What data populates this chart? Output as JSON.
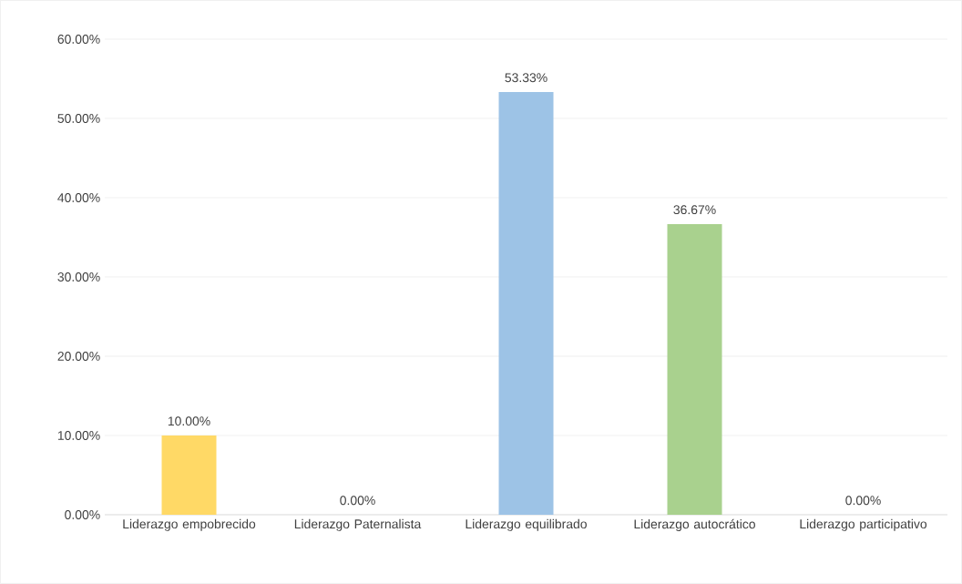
{
  "chart_data": {
    "type": "bar",
    "categories": [
      "Liderazgo empobrecido",
      "Liderazgo Paternalista",
      "Liderazgo equilibrado",
      "Liderazgo autocrático",
      "Liderazgo participativo"
    ],
    "values": [
      10,
      0,
      53.33,
      36.67,
      0
    ],
    "value_labels": [
      "10.00%",
      "0.00%",
      "53.33%",
      "36.67%",
      "0.00%"
    ],
    "colors": [
      "#ffd966",
      "#f4b183",
      "#9dc3e6",
      "#a9d18e",
      "#8faadc"
    ],
    "ylim": [
      0,
      60
    ],
    "yticks": [
      {
        "value": 0,
        "label": "0.00%"
      },
      {
        "value": 10,
        "label": "10.00%"
      },
      {
        "value": 20,
        "label": "20.00%"
      },
      {
        "value": 30,
        "label": "30.00%"
      },
      {
        "value": 40,
        "label": "40.00%"
      },
      {
        "value": 50,
        "label": "50.00%"
      },
      {
        "value": 60,
        "label": "60.00%"
      }
    ],
    "grid": "y"
  }
}
